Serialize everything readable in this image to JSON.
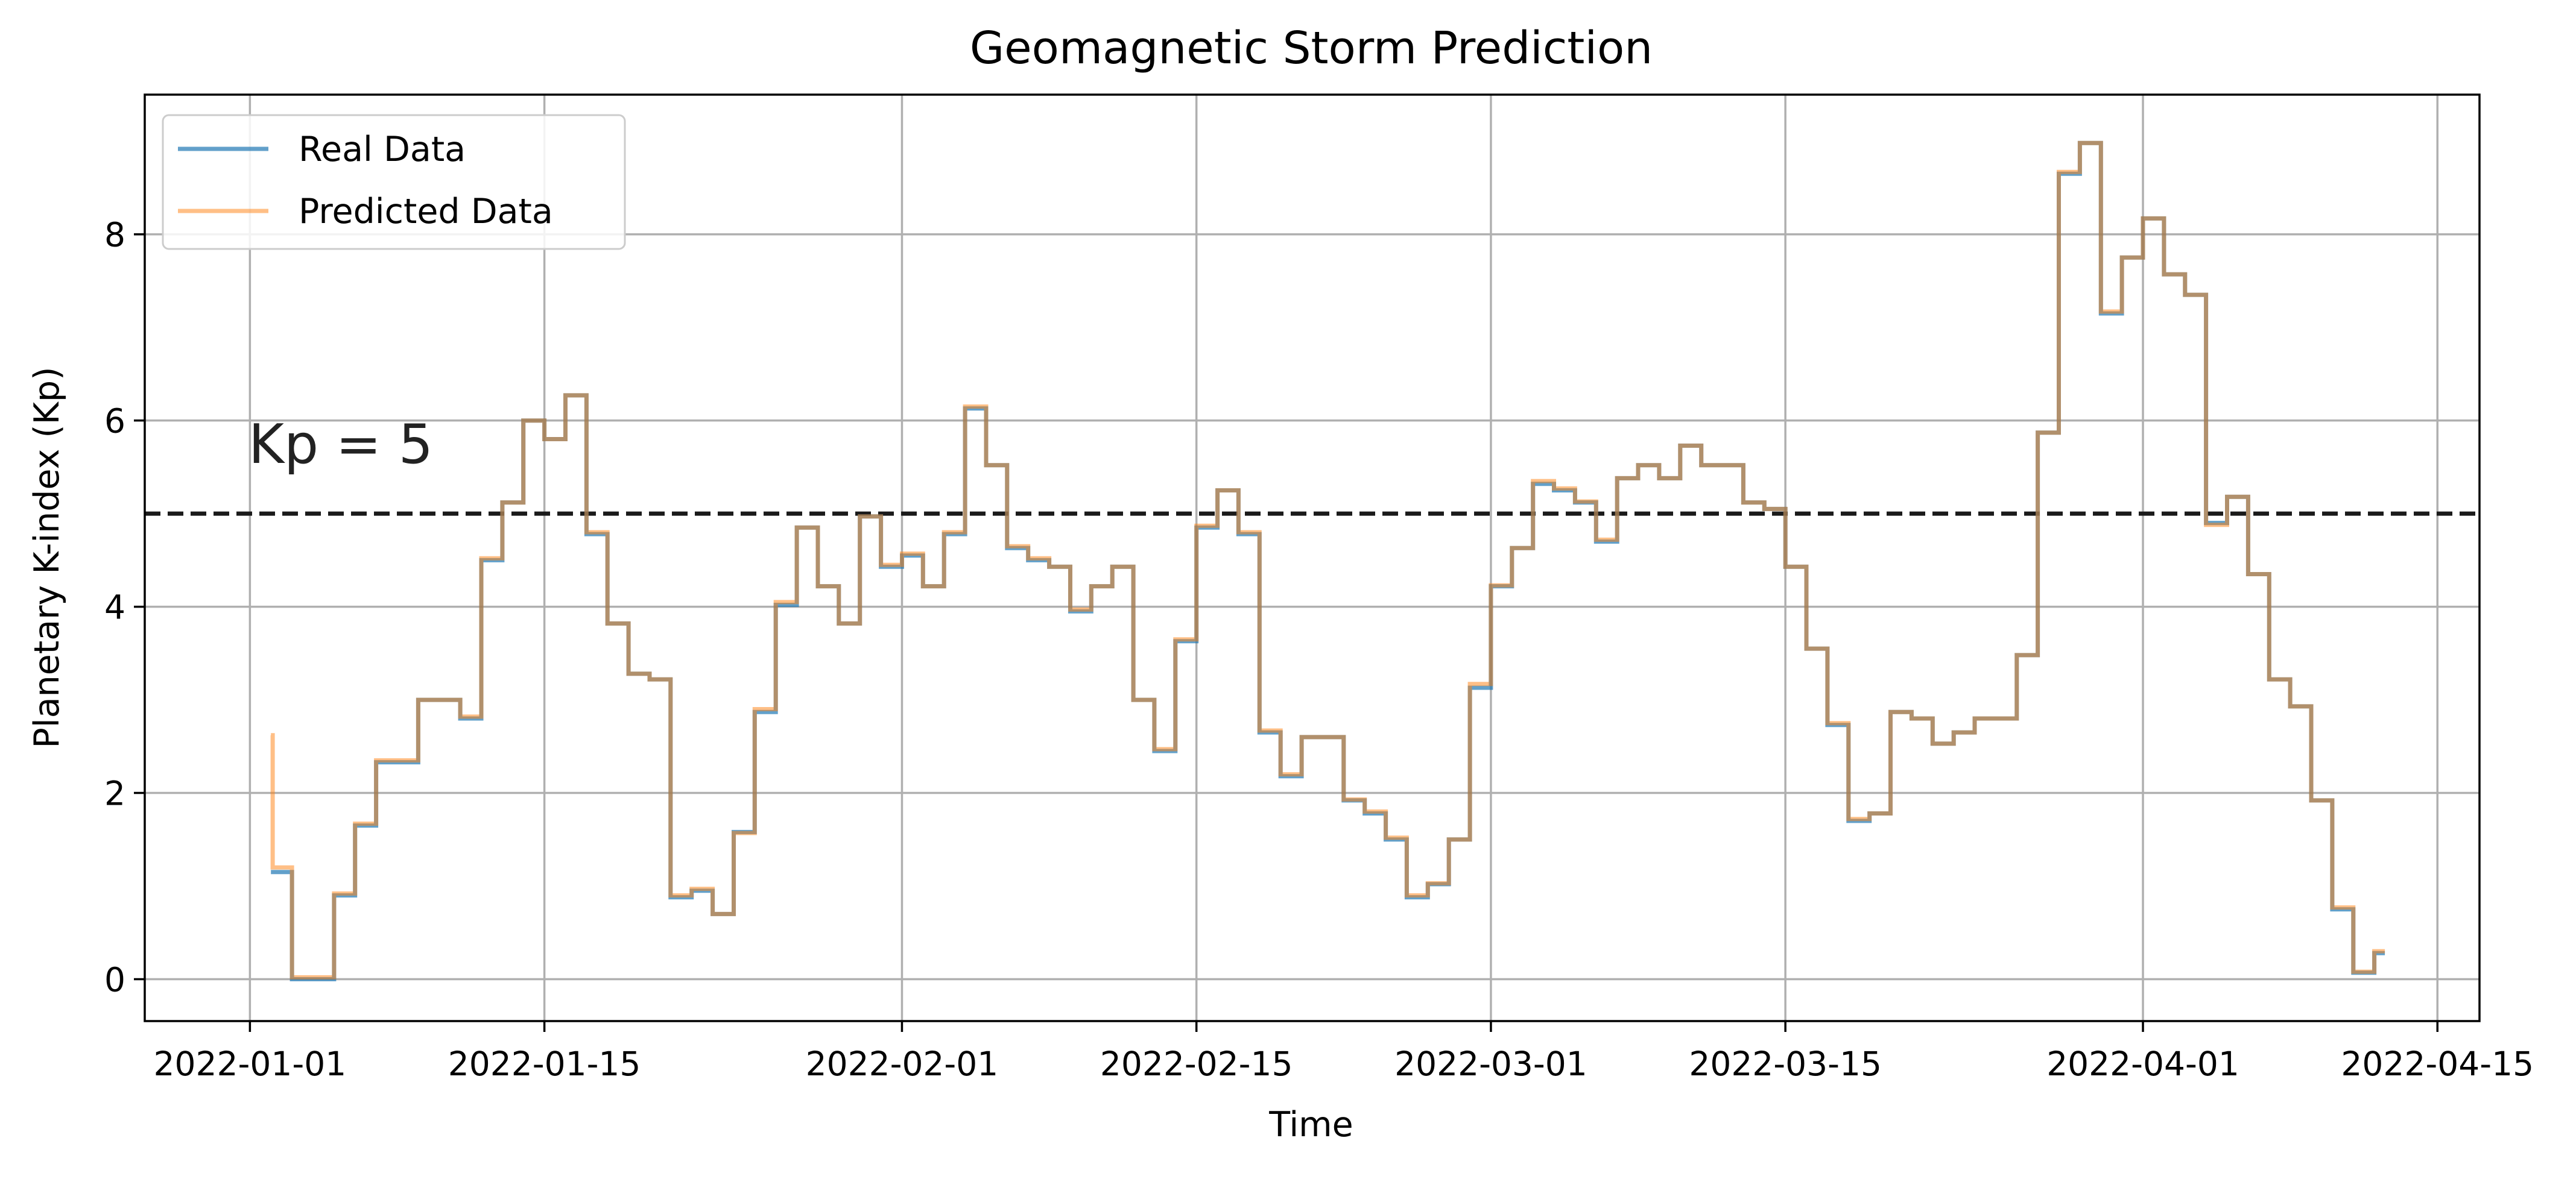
{
  "chart_data": {
    "type": "line",
    "title": "Geomagnetic Storm Prediction",
    "xlabel": "Time",
    "ylabel": "Planetary K-index (Kp)",
    "x_ticks": [
      "2022-01-01",
      "2022-01-15",
      "2022-02-01",
      "2022-02-15",
      "2022-03-01",
      "2022-03-15",
      "2022-04-01",
      "2022-04-15"
    ],
    "y_ticks": [
      "0",
      "2",
      "4",
      "6",
      "8"
    ],
    "xlim": [
      "2021-12-27",
      "2022-04-17"
    ],
    "ylim": [
      -0.45,
      9.5
    ],
    "grid": true,
    "legend_position": "upper-left",
    "threshold": {
      "value": 5,
      "label": "Kp = 5",
      "style": "dashed",
      "color": "#1a1a1a"
    },
    "series": [
      {
        "name": "Real Data",
        "color": "#1f77b4",
        "step": "post",
        "points": [
          [
            "2022-01-02",
            1.15
          ],
          [
            "2022-01-03",
            0.0
          ],
          [
            "2022-01-05",
            0.9
          ],
          [
            "2022-01-06",
            1.65
          ],
          [
            "2022-01-07",
            2.33
          ],
          [
            "2022-01-09",
            3.0
          ],
          [
            "2022-01-11",
            2.8
          ],
          [
            "2022-01-12",
            4.5
          ],
          [
            "2022-01-13",
            5.12
          ],
          [
            "2022-01-14",
            6.0
          ],
          [
            "2022-01-15",
            5.8
          ],
          [
            "2022-01-16",
            6.27
          ],
          [
            "2022-01-17",
            4.78
          ],
          [
            "2022-01-18",
            3.82
          ],
          [
            "2022-01-19",
            3.28
          ],
          [
            "2022-01-20",
            3.22
          ],
          [
            "2022-01-21",
            0.88
          ],
          [
            "2022-01-22",
            0.95
          ],
          [
            "2022-01-23",
            0.7
          ],
          [
            "2022-01-24",
            1.58
          ],
          [
            "2022-01-25",
            2.87
          ],
          [
            "2022-01-26",
            4.02
          ],
          [
            "2022-01-27",
            4.85
          ],
          [
            "2022-01-28",
            4.22
          ],
          [
            "2022-01-29",
            3.82
          ],
          [
            "2022-01-30",
            4.97
          ],
          [
            "2022-01-31",
            4.43
          ],
          [
            "2022-02-01",
            4.55
          ],
          [
            "2022-02-02",
            4.22
          ],
          [
            "2022-02-03",
            4.78
          ],
          [
            "2022-02-04",
            6.13
          ],
          [
            "2022-02-05",
            5.52
          ],
          [
            "2022-02-06",
            4.63
          ],
          [
            "2022-02-07",
            4.5
          ],
          [
            "2022-02-08",
            4.43
          ],
          [
            "2022-02-09",
            3.95
          ],
          [
            "2022-02-10",
            4.22
          ],
          [
            "2022-02-11",
            4.43
          ],
          [
            "2022-02-12",
            3.0
          ],
          [
            "2022-02-13",
            2.45
          ],
          [
            "2022-02-14",
            3.63
          ],
          [
            "2022-02-15",
            4.85
          ],
          [
            "2022-02-16",
            5.25
          ],
          [
            "2022-02-17",
            4.78
          ],
          [
            "2022-02-18",
            2.65
          ],
          [
            "2022-02-19",
            2.18
          ],
          [
            "2022-02-20",
            2.6
          ],
          [
            "2022-02-22",
            1.92
          ],
          [
            "2022-02-23",
            1.78
          ],
          [
            "2022-02-24",
            1.5
          ],
          [
            "2022-02-25",
            0.88
          ],
          [
            "2022-02-26",
            1.02
          ],
          [
            "2022-02-27",
            1.5
          ],
          [
            "2022-02-28",
            3.13
          ],
          [
            "2022-03-01",
            4.22
          ],
          [
            "2022-03-02",
            4.63
          ],
          [
            "2022-03-03",
            5.32
          ],
          [
            "2022-03-04",
            5.25
          ],
          [
            "2022-03-05",
            5.12
          ],
          [
            "2022-03-06",
            4.7
          ],
          [
            "2022-03-07",
            5.38
          ],
          [
            "2022-03-08",
            5.52
          ],
          [
            "2022-03-09",
            5.38
          ],
          [
            "2022-03-10",
            5.73
          ],
          [
            "2022-03-11",
            5.52
          ],
          [
            "2022-03-13",
            5.12
          ],
          [
            "2022-03-14",
            5.05
          ],
          [
            "2022-03-15",
            4.43
          ],
          [
            "2022-03-16",
            3.55
          ],
          [
            "2022-03-17",
            2.73
          ],
          [
            "2022-03-18",
            1.7
          ],
          [
            "2022-03-19",
            1.78
          ],
          [
            "2022-03-20",
            2.87
          ],
          [
            "2022-03-21",
            2.8
          ],
          [
            "2022-03-22",
            2.53
          ],
          [
            "2022-03-23",
            2.65
          ],
          [
            "2022-03-24",
            2.8
          ],
          [
            "2022-03-26",
            3.48
          ],
          [
            "2022-03-27",
            5.87
          ],
          [
            "2022-03-28",
            8.65
          ],
          [
            "2022-03-29",
            8.98
          ],
          [
            "2022-03-30",
            7.15
          ],
          [
            "2022-03-31",
            7.75
          ],
          [
            "2022-04-01",
            8.17
          ],
          [
            "2022-04-02",
            7.57
          ],
          [
            "2022-04-03",
            7.35
          ],
          [
            "2022-04-04",
            4.9
          ],
          [
            "2022-04-05",
            5.18
          ],
          [
            "2022-04-06",
            4.35
          ],
          [
            "2022-04-07",
            3.22
          ],
          [
            "2022-04-08",
            2.93
          ],
          [
            "2022-04-09",
            1.92
          ],
          [
            "2022-04-10",
            0.75
          ],
          [
            "2022-04-11",
            0.07
          ],
          [
            "2022-04-12",
            0.28
          ],
          [
            "2022-04-12T12:00",
            0.28
          ]
        ]
      },
      {
        "name": "Predicted Data",
        "color": "#ff7f0e",
        "step": "post",
        "points": [
          [
            "2022-01-02",
            2.62
          ],
          [
            "2022-01-02T02:00",
            1.2
          ],
          [
            "2022-01-03",
            0.02
          ],
          [
            "2022-01-05",
            0.92
          ],
          [
            "2022-01-06",
            1.67
          ],
          [
            "2022-01-07",
            2.35
          ],
          [
            "2022-01-09",
            3.0
          ],
          [
            "2022-01-11",
            2.82
          ],
          [
            "2022-01-12",
            4.52
          ],
          [
            "2022-01-13",
            5.12
          ],
          [
            "2022-01-14",
            6.0
          ],
          [
            "2022-01-15",
            5.8
          ],
          [
            "2022-01-16",
            6.27
          ],
          [
            "2022-01-17",
            4.8
          ],
          [
            "2022-01-18",
            3.82
          ],
          [
            "2022-01-19",
            3.28
          ],
          [
            "2022-01-20",
            3.22
          ],
          [
            "2022-01-21",
            0.9
          ],
          [
            "2022-01-22",
            0.97
          ],
          [
            "2022-01-23",
            0.7
          ],
          [
            "2022-01-24",
            1.57
          ],
          [
            "2022-01-25",
            2.9
          ],
          [
            "2022-01-26",
            4.05
          ],
          [
            "2022-01-27",
            4.85
          ],
          [
            "2022-01-28",
            4.22
          ],
          [
            "2022-01-29",
            3.82
          ],
          [
            "2022-01-30",
            4.97
          ],
          [
            "2022-01-31",
            4.45
          ],
          [
            "2022-02-01",
            4.57
          ],
          [
            "2022-02-02",
            4.22
          ],
          [
            "2022-02-03",
            4.8
          ],
          [
            "2022-02-04",
            6.15
          ],
          [
            "2022-02-05",
            5.52
          ],
          [
            "2022-02-06",
            4.65
          ],
          [
            "2022-02-07",
            4.52
          ],
          [
            "2022-02-08",
            4.43
          ],
          [
            "2022-02-09",
            3.97
          ],
          [
            "2022-02-10",
            4.22
          ],
          [
            "2022-02-11",
            4.43
          ],
          [
            "2022-02-12",
            3.0
          ],
          [
            "2022-02-13",
            2.47
          ],
          [
            "2022-02-14",
            3.65
          ],
          [
            "2022-02-15",
            4.87
          ],
          [
            "2022-02-16",
            5.25
          ],
          [
            "2022-02-17",
            4.8
          ],
          [
            "2022-02-18",
            2.67
          ],
          [
            "2022-02-19",
            2.2
          ],
          [
            "2022-02-20",
            2.6
          ],
          [
            "2022-02-22",
            1.93
          ],
          [
            "2022-02-23",
            1.8
          ],
          [
            "2022-02-24",
            1.52
          ],
          [
            "2022-02-25",
            0.9
          ],
          [
            "2022-02-26",
            1.03
          ],
          [
            "2022-02-27",
            1.5
          ],
          [
            "2022-02-28",
            3.17
          ],
          [
            "2022-03-01",
            4.23
          ],
          [
            "2022-03-02",
            4.63
          ],
          [
            "2022-03-03",
            5.35
          ],
          [
            "2022-03-04",
            5.27
          ],
          [
            "2022-03-05",
            5.13
          ],
          [
            "2022-03-06",
            4.72
          ],
          [
            "2022-03-07",
            5.38
          ],
          [
            "2022-03-08",
            5.52
          ],
          [
            "2022-03-09",
            5.38
          ],
          [
            "2022-03-10",
            5.73
          ],
          [
            "2022-03-11",
            5.52
          ],
          [
            "2022-03-13",
            5.12
          ],
          [
            "2022-03-14",
            5.05
          ],
          [
            "2022-03-15",
            4.43
          ],
          [
            "2022-03-16",
            3.55
          ],
          [
            "2022-03-17",
            2.75
          ],
          [
            "2022-03-18",
            1.72
          ],
          [
            "2022-03-19",
            1.78
          ],
          [
            "2022-03-20",
            2.87
          ],
          [
            "2022-03-21",
            2.8
          ],
          [
            "2022-03-22",
            2.53
          ],
          [
            "2022-03-23",
            2.65
          ],
          [
            "2022-03-24",
            2.8
          ],
          [
            "2022-03-26",
            3.48
          ],
          [
            "2022-03-27",
            5.87
          ],
          [
            "2022-03-28",
            8.67
          ],
          [
            "2022-03-29",
            8.98
          ],
          [
            "2022-03-30",
            7.17
          ],
          [
            "2022-03-31",
            7.75
          ],
          [
            "2022-04-01",
            8.17
          ],
          [
            "2022-04-02",
            7.57
          ],
          [
            "2022-04-03",
            7.35
          ],
          [
            "2022-04-04",
            4.88
          ],
          [
            "2022-04-05",
            5.18
          ],
          [
            "2022-04-06",
            4.35
          ],
          [
            "2022-04-07",
            3.22
          ],
          [
            "2022-04-08",
            2.93
          ],
          [
            "2022-04-09",
            1.92
          ],
          [
            "2022-04-10",
            0.77
          ],
          [
            "2022-04-11",
            0.08
          ],
          [
            "2022-04-12",
            0.3
          ],
          [
            "2022-04-12T12:00",
            0.3
          ]
        ]
      }
    ]
  }
}
